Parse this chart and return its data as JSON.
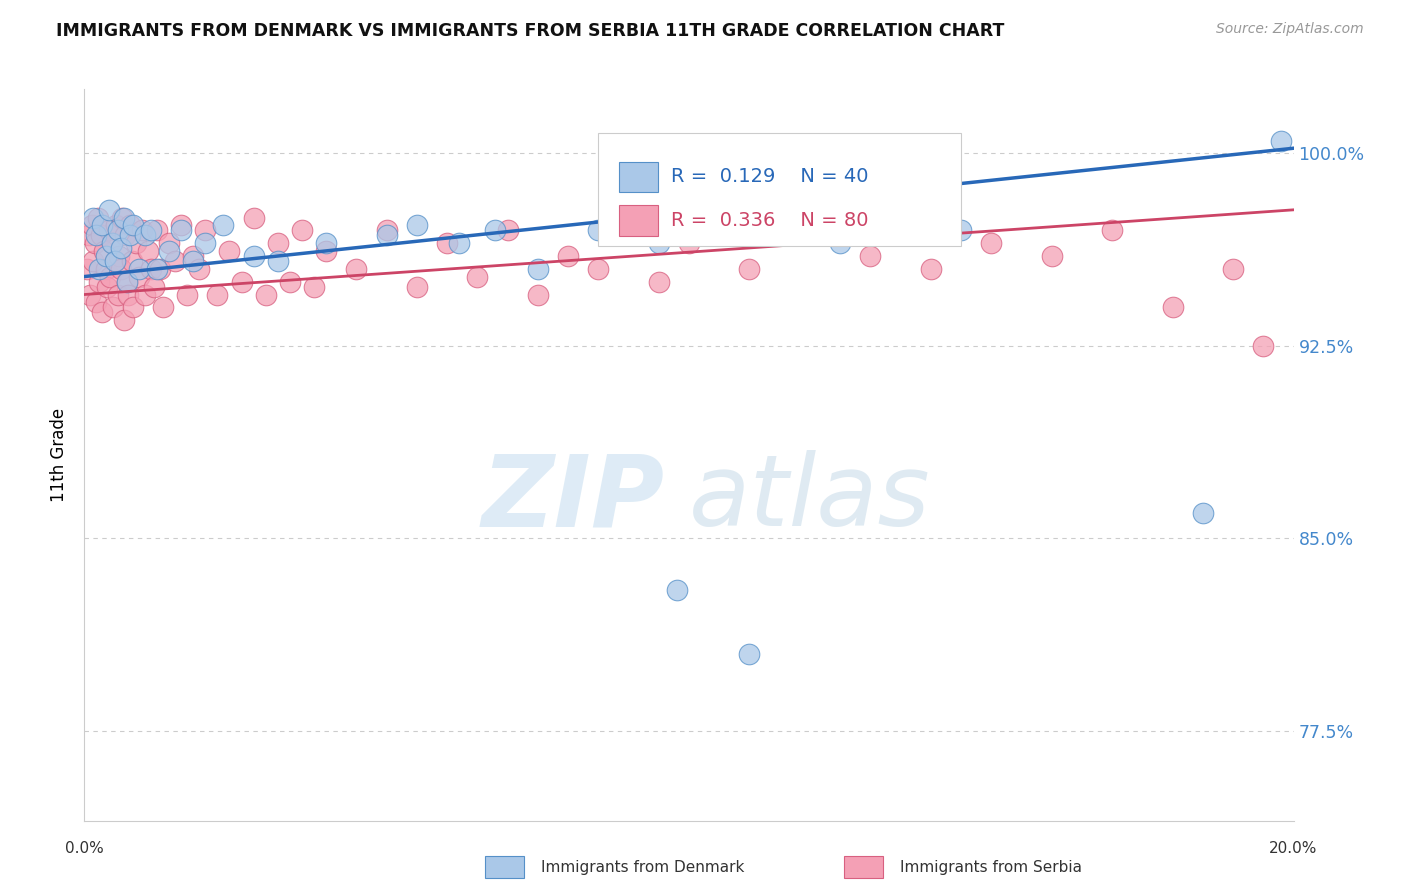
{
  "title": "IMMIGRANTS FROM DENMARK VS IMMIGRANTS FROM SERBIA 11TH GRADE CORRELATION CHART",
  "source": "Source: ZipAtlas.com",
  "ylabel": "11th Grade",
  "x_min": 0.0,
  "x_max": 20.0,
  "y_min": 74.0,
  "y_max": 102.5,
  "yticks": [
    77.5,
    85.0,
    92.5,
    100.0
  ],
  "ytick_labels": [
    "77.5%",
    "85.0%",
    "92.5%",
    "100.0%"
  ],
  "denmark_R": 0.129,
  "denmark_N": 40,
  "serbia_R": 0.336,
  "serbia_N": 80,
  "denmark_color": "#aac8e8",
  "serbia_color": "#f4a0b5",
  "denmark_edge_color": "#5590c8",
  "serbia_edge_color": "#d86080",
  "denmark_line_color": "#2868b8",
  "serbia_line_color": "#cc4466",
  "legend_label_denmark": "Immigrants from Denmark",
  "legend_label_serbia": "Immigrants from Serbia",
  "denmark_line_y0": 95.2,
  "denmark_line_y1": 100.2,
  "serbia_line_y0": 94.5,
  "serbia_line_y1": 97.8,
  "denmark_x": [
    0.15,
    0.2,
    0.25,
    0.3,
    0.35,
    0.4,
    0.45,
    0.5,
    0.55,
    0.6,
    0.65,
    0.7,
    0.75,
    0.8,
    0.9,
    1.0,
    1.1,
    1.2,
    1.4,
    1.6,
    1.8,
    2.0,
    2.3,
    2.8,
    3.2,
    4.0,
    5.0,
    5.5,
    6.2,
    6.8,
    7.5,
    8.5,
    9.5,
    9.8,
    11.0,
    12.5,
    14.0,
    14.5,
    18.5,
    19.8
  ],
  "denmark_y": [
    97.5,
    96.8,
    95.5,
    97.2,
    96.0,
    97.8,
    96.5,
    95.8,
    97.0,
    96.3,
    97.5,
    95.0,
    96.8,
    97.2,
    95.5,
    96.8,
    97.0,
    95.5,
    96.2,
    97.0,
    95.8,
    96.5,
    97.2,
    96.0,
    95.8,
    96.5,
    96.8,
    97.2,
    96.5,
    97.0,
    95.5,
    97.0,
    96.5,
    83.0,
    80.5,
    96.5,
    96.8,
    97.0,
    86.0,
    100.5
  ],
  "serbia_x": [
    0.05,
    0.08,
    0.1,
    0.12,
    0.15,
    0.18,
    0.2,
    0.22,
    0.25,
    0.28,
    0.3,
    0.33,
    0.35,
    0.38,
    0.4,
    0.42,
    0.45,
    0.48,
    0.5,
    0.52,
    0.55,
    0.58,
    0.6,
    0.62,
    0.65,
    0.68,
    0.7,
    0.72,
    0.75,
    0.78,
    0.8,
    0.85,
    0.9,
    0.95,
    1.0,
    1.05,
    1.1,
    1.15,
    1.2,
    1.25,
    1.3,
    1.4,
    1.5,
    1.6,
    1.7,
    1.8,
    1.9,
    2.0,
    2.2,
    2.4,
    2.6,
    2.8,
    3.0,
    3.2,
    3.4,
    3.6,
    3.8,
    4.0,
    4.5,
    5.0,
    5.5,
    6.0,
    6.5,
    7.0,
    7.5,
    8.0,
    8.5,
    9.0,
    9.5,
    10.0,
    11.0,
    12.0,
    13.0,
    14.0,
    15.0,
    16.0,
    17.0,
    18.0,
    19.0,
    19.5
  ],
  "serbia_y": [
    95.5,
    96.8,
    94.5,
    97.2,
    95.8,
    96.5,
    94.2,
    97.5,
    95.0,
    96.8,
    93.8,
    96.2,
    95.5,
    94.8,
    97.0,
    95.2,
    96.5,
    94.0,
    95.8,
    97.2,
    94.5,
    96.0,
    95.5,
    97.5,
    93.5,
    96.8,
    95.0,
    94.5,
    97.2,
    95.8,
    94.0,
    96.5,
    95.2,
    97.0,
    94.5,
    96.2,
    95.5,
    94.8,
    97.0,
    95.5,
    94.0,
    96.5,
    95.8,
    97.2,
    94.5,
    96.0,
    95.5,
    97.0,
    94.5,
    96.2,
    95.0,
    97.5,
    94.5,
    96.5,
    95.0,
    97.0,
    94.8,
    96.2,
    95.5,
    97.0,
    94.8,
    96.5,
    95.2,
    97.0,
    94.5,
    96.0,
    95.5,
    97.5,
    95.0,
    96.5,
    95.5,
    97.0,
    96.0,
    95.5,
    96.5,
    96.0,
    97.0,
    94.0,
    95.5,
    92.5
  ]
}
